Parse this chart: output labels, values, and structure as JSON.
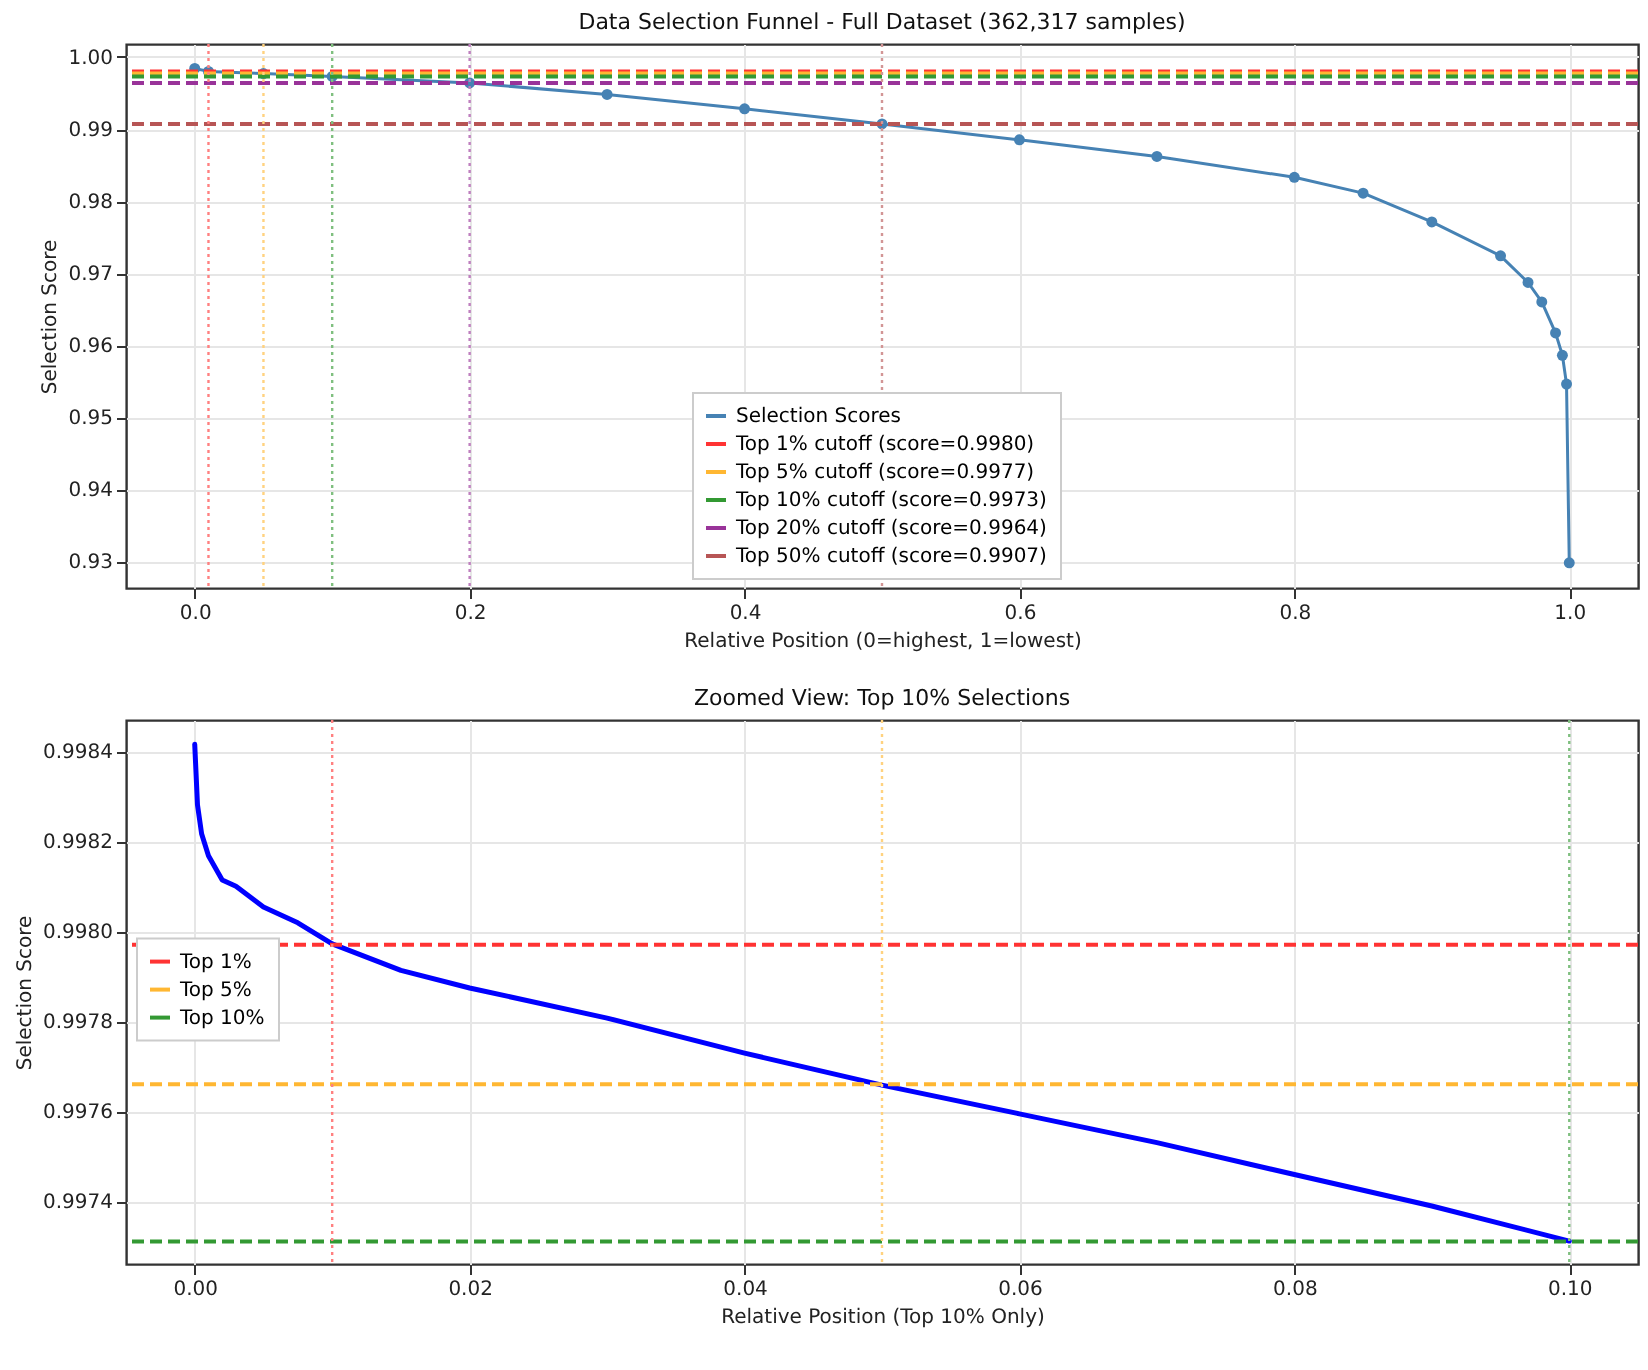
{
  "chart_data": [
    {
      "type": "line",
      "title": "Data Selection Funnel - Full Dataset (362,317 samples)",
      "xlabel": "Relative Position (0=highest, 1=lowest)",
      "ylabel": "Selection Score",
      "series": [
        {
          "name": "Selection Scores",
          "color": "#4682b4",
          "x": [
            0,
            0.01,
            0.05,
            0.1,
            0.2,
            0.3,
            0.4,
            0.5,
            0.6,
            0.7,
            0.8,
            0.85,
            0.9,
            0.95,
            0.97,
            0.98,
            0.99,
            0.995,
            0.998,
            1.0
          ],
          "values": [
            0.9984,
            0.998,
            0.9977,
            0.9973,
            0.9964,
            0.9948,
            0.9928,
            0.9907,
            0.9885,
            0.9862,
            0.9833,
            0.9811,
            0.9771,
            0.9724,
            0.9687,
            0.966,
            0.9617,
            0.9586,
            0.9546,
            0.9298
          ]
        }
      ],
      "xlim": [
        -0.05,
        1.05
      ],
      "xticks": [
        {
          "value": 0,
          "label": "0.0"
        },
        0.2,
        0.4,
        0.6,
        0.8,
        {
          "value": 1,
          "label": "1.0"
        }
      ],
      "ylim": [
        0.9263,
        1.0018
      ],
      "yticks": [
        0.93,
        0.94,
        0.95,
        0.96,
        0.97,
        0.98,
        0.99,
        {
          "value": 1,
          "label": "1.00"
        }
      ],
      "ref_lines": [
        {
          "axis": "y",
          "value": 0.998,
          "label": "Top 1% cutoff (score=0.9980)",
          "color": "#ff3333",
          "line_style": "dashed"
        },
        {
          "axis": "y",
          "value": 0.9977,
          "label": "Top 5% cutoff (score=0.9977)",
          "color": "#ffb732",
          "line_style": "dashed"
        },
        {
          "axis": "y",
          "value": 0.9973,
          "label": "Top 10% cutoff (score=0.9973)",
          "color": "#339933",
          "line_style": "dashed"
        },
        {
          "axis": "y",
          "value": 0.9964,
          "label": "Top 20% cutoff (score=0.9964)",
          "color": "#993399",
          "line_style": "dashed"
        },
        {
          "axis": "y",
          "value": 0.9907,
          "label": "Top 50% cutoff (score=0.9907)",
          "color": "#b75555",
          "line_style": "dashed"
        },
        {
          "axis": "x",
          "value": 0.01,
          "label": null,
          "color": "#ff8080",
          "line_style": "dotted"
        },
        {
          "axis": "x",
          "value": 0.05,
          "label": null,
          "color": "#ffd27f",
          "line_style": "dotted"
        },
        {
          "axis": "x",
          "value": 0.1,
          "label": null,
          "color": "#7fbf7f",
          "line_style": "dotted"
        },
        {
          "axis": "x",
          "value": 0.2,
          "label": null,
          "color": "#bf7fbf",
          "line_style": "dotted"
        },
        {
          "axis": "x",
          "value": 0.5,
          "label": null,
          "color": "#d29595",
          "line_style": "dotted"
        }
      ],
      "grid": true,
      "legend": "bottom",
      "marker": "circle",
      "line_style": "solid"
    },
    {
      "type": "line",
      "title": "Zoomed View: Top 10% Selections",
      "xlabel": "Relative Position (Top 10% Only)",
      "ylabel": "Selection Score",
      "series": [
        {
          "color": "#0000ff",
          "x": [
            0,
            0.0002,
            0.0005,
            0.001,
            0.002,
            0.003,
            0.005,
            0.0075,
            0.01,
            0.015,
            0.02,
            0.03,
            0.04,
            0.05,
            0.06,
            0.07,
            0.08,
            0.09,
            0.1
          ],
          "values": [
            0.998416,
            0.998281,
            0.998217,
            0.998168,
            0.998114,
            0.9981,
            0.998054,
            0.998019,
            0.997972,
            0.997913,
            0.997874,
            0.997807,
            0.997729,
            0.997658,
            0.997594,
            0.99753,
            0.997459,
            0.997389,
            0.997311
          ]
        }
      ],
      "xlim": [
        -0.005,
        0.105
      ],
      "xticks": [
        {
          "value": 0,
          "label": "0.00"
        },
        0.02,
        0.04,
        0.06,
        0.08,
        {
          "value": 0.1,
          "label": "0.10"
        }
      ],
      "ylim": [
        0.99726,
        0.99847
      ],
      "yticks": [
        0.9974,
        0.9976,
        0.9978,
        {
          "value": 0.998,
          "label": "0.9980"
        },
        0.9982,
        0.9984
      ],
      "ref_lines": [
        {
          "axis": "y",
          "value": 0.99797,
          "label": "Top 1%",
          "color": "#ff3333",
          "line_style": "dashed"
        },
        {
          "axis": "y",
          "value": 0.99766,
          "label": "Top 5%",
          "color": "#ffb732",
          "line_style": "dashed"
        },
        {
          "axis": "y",
          "value": 0.99731,
          "label": "Top 10%",
          "color": "#339933",
          "line_style": "dashed"
        },
        {
          "axis": "x",
          "value": 0.01,
          "label": null,
          "color": "#ff8080",
          "line_style": "dotted"
        },
        {
          "axis": "x",
          "value": 0.05,
          "label": null,
          "color": "#ffd27f",
          "line_style": "dotted"
        },
        {
          "axis": "x",
          "value": 0.1,
          "label": null,
          "color": "#7fbf7f",
          "line_style": "dotted"
        }
      ],
      "grid": true,
      "legend": "left",
      "marker": "none",
      "line_style": "solid"
    }
  ]
}
